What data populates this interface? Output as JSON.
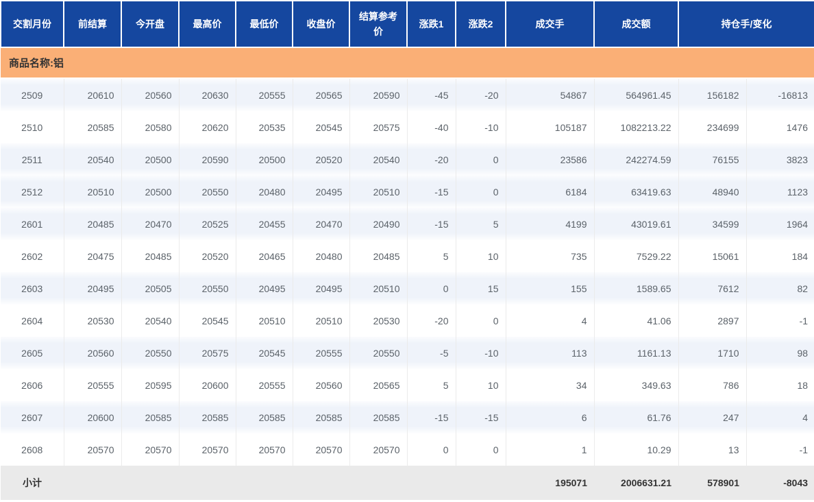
{
  "table": {
    "headers": [
      "交割月份",
      "前结算",
      "今开盘",
      "最高价",
      "最低价",
      "收盘价",
      "结算参考价",
      "涨跌1",
      "涨跌2",
      "成交手",
      "成交额",
      "持仓手/变化"
    ],
    "product_label": "商品名称:铝",
    "rows": [
      {
        "month": "2509",
        "prev_settle": "20610",
        "open": "20560",
        "high": "20630",
        "low": "20555",
        "close": "20565",
        "settle_ref": "20590",
        "change1": "-45",
        "change2": "-20",
        "volume": "54867",
        "turnover": "564961.45",
        "open_interest": "156182",
        "oi_change": "-16813",
        "shaded": true
      },
      {
        "month": "2510",
        "prev_settle": "20585",
        "open": "20580",
        "high": "20620",
        "low": "20535",
        "close": "20545",
        "settle_ref": "20575",
        "change1": "-40",
        "change2": "-10",
        "volume": "105187",
        "turnover": "1082213.22",
        "open_interest": "234699",
        "oi_change": "1476",
        "shaded": false
      },
      {
        "month": "2511",
        "prev_settle": "20540",
        "open": "20500",
        "high": "20590",
        "low": "20500",
        "close": "20520",
        "settle_ref": "20540",
        "change1": "-20",
        "change2": "0",
        "volume": "23586",
        "turnover": "242274.59",
        "open_interest": "76155",
        "oi_change": "3823",
        "shaded": true
      },
      {
        "month": "2512",
        "prev_settle": "20510",
        "open": "20500",
        "high": "20550",
        "low": "20480",
        "close": "20495",
        "settle_ref": "20510",
        "change1": "-15",
        "change2": "0",
        "volume": "6184",
        "turnover": "63419.63",
        "open_interest": "48940",
        "oi_change": "1123",
        "shaded": true
      },
      {
        "month": "2601",
        "prev_settle": "20485",
        "open": "20470",
        "high": "20525",
        "low": "20455",
        "close": "20470",
        "settle_ref": "20490",
        "change1": "-15",
        "change2": "5",
        "volume": "4199",
        "turnover": "43019.61",
        "open_interest": "34599",
        "oi_change": "1964",
        "shaded": true
      },
      {
        "month": "2602",
        "prev_settle": "20475",
        "open": "20485",
        "high": "20520",
        "low": "20465",
        "close": "20480",
        "settle_ref": "20485",
        "change1": "5",
        "change2": "10",
        "volume": "735",
        "turnover": "7529.22",
        "open_interest": "15061",
        "oi_change": "184",
        "shaded": false
      },
      {
        "month": "2603",
        "prev_settle": "20495",
        "open": "20505",
        "high": "20550",
        "low": "20495",
        "close": "20495",
        "settle_ref": "20510",
        "change1": "0",
        "change2": "15",
        "volume": "155",
        "turnover": "1589.65",
        "open_interest": "7612",
        "oi_change": "82",
        "shaded": true
      },
      {
        "month": "2604",
        "prev_settle": "20530",
        "open": "20540",
        "high": "20545",
        "low": "20510",
        "close": "20510",
        "settle_ref": "20530",
        "change1": "-20",
        "change2": "0",
        "volume": "4",
        "turnover": "41.06",
        "open_interest": "2897",
        "oi_change": "-1",
        "shaded": false
      },
      {
        "month": "2605",
        "prev_settle": "20560",
        "open": "20550",
        "high": "20575",
        "low": "20545",
        "close": "20555",
        "settle_ref": "20550",
        "change1": "-5",
        "change2": "-10",
        "volume": "113",
        "turnover": "1161.13",
        "open_interest": "1710",
        "oi_change": "98",
        "shaded": true
      },
      {
        "month": "2606",
        "prev_settle": "20555",
        "open": "20595",
        "high": "20600",
        "low": "20555",
        "close": "20560",
        "settle_ref": "20565",
        "change1": "5",
        "change2": "10",
        "volume": "34",
        "turnover": "349.63",
        "open_interest": "786",
        "oi_change": "18",
        "shaded": false
      },
      {
        "month": "2607",
        "prev_settle": "20600",
        "open": "20585",
        "high": "20585",
        "low": "20585",
        "close": "20585",
        "settle_ref": "20585",
        "change1": "-15",
        "change2": "-15",
        "volume": "6",
        "turnover": "61.76",
        "open_interest": "247",
        "oi_change": "4",
        "shaded": true
      },
      {
        "month": "2608",
        "prev_settle": "20570",
        "open": "20570",
        "high": "20570",
        "low": "20570",
        "close": "20570",
        "settle_ref": "20570",
        "change1": "0",
        "change2": "0",
        "volume": "1",
        "turnover": "10.29",
        "open_interest": "13",
        "oi_change": "-1",
        "shaded": false
      }
    ],
    "subtotal": {
      "label": "小计",
      "volume": "195071",
      "turnover": "2006631.21",
      "open_interest": "578901",
      "oi_change": "-8043"
    }
  },
  "colors": {
    "header_bg": "#15479F",
    "header_text": "#FFFFFF",
    "product_band_bg": "#FAAF76",
    "shaded_row_bg": "#EFF3FA",
    "data_text": "#5B6269",
    "subtotal_bg": "#EAEAEA",
    "subtotal_text": "#333333",
    "grid_line": "#EBEBEB"
  }
}
